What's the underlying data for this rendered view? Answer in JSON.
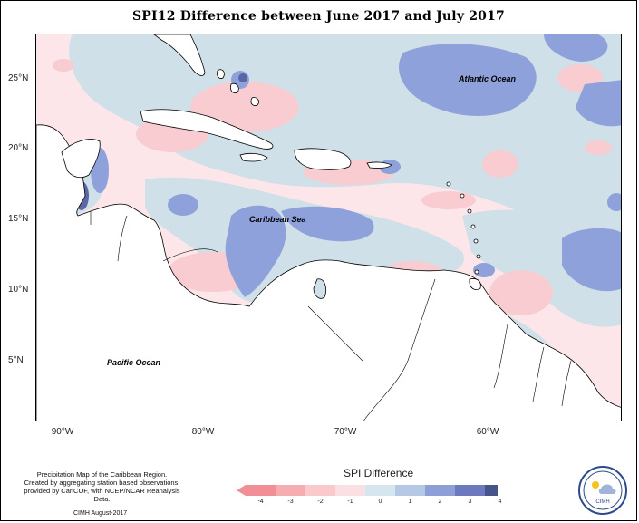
{
  "title": "SPI12 Difference between June 2017 and July 2017",
  "axes": {
    "y_labels": [
      "25°N",
      "20°N",
      "15°N",
      "10°N",
      "5°N"
    ],
    "x_labels": [
      "90°W",
      "80°W",
      "70°W",
      "60°W"
    ]
  },
  "ocean_labels": {
    "atlantic": "Atlantic Ocean",
    "caribbean": "Caribbean Sea",
    "pacific": "Pacific Ocean"
  },
  "credits": {
    "line1": "Precipitation Map of the Caribbean Region.",
    "line2": "Created by aggregating station based observations,",
    "line3": "provided by CariCOF, with NCEP/NCAR Reanalysis Data.",
    "date": "CIMH August-2017"
  },
  "legend": {
    "title": "SPI Difference",
    "ticks": [
      "-4",
      "-3",
      "-2",
      "-1",
      "0",
      "1",
      "2",
      "3",
      "4"
    ],
    "colors": [
      "#f28f96",
      "#f6adb2",
      "#f9c9cc",
      "#fbe0e3",
      "#d6e6ee",
      "#b5c9e4",
      "#8e9fd8",
      "#6d79bd",
      "#475489"
    ]
  },
  "logo": {
    "text": "CIMH",
    "icon": "cimh-logo-icon"
  },
  "colors": {
    "light_red": "#fde3e6",
    "mid_red": "#f8c9cd",
    "light_blue": "#c9dde6",
    "mid_blue": "#8d9fd9",
    "dark_blue": "#5e6aa7"
  }
}
